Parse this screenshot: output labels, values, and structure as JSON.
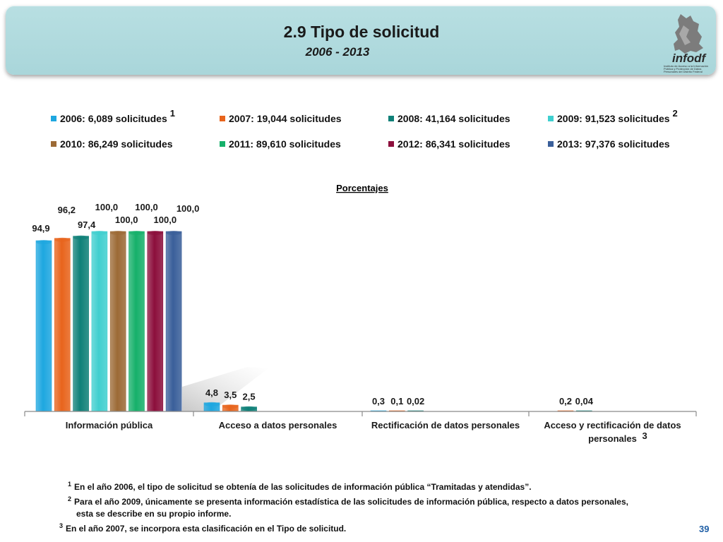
{
  "header": {
    "title": "2.9 Tipo de solicitud",
    "subtitle": "2006 - 2013",
    "logo_text": "infodf",
    "logo_caption": "Instituto de Acceso a la Información Pública y Protección de Datos Personales del Distrito Federal"
  },
  "legend": [
    {
      "label": "2006: 6,089 solicitudes",
      "sup": "1",
      "color": "#1ea7e0"
    },
    {
      "label": "2007: 19,044 solicitudes",
      "sup": "",
      "color": "#e8641c"
    },
    {
      "label": "2008: 41,164 solicitudes",
      "sup": "",
      "color": "#0f8078"
    },
    {
      "label": "2009: 91,523 solicitudes",
      "sup": "2",
      "color": "#3fcfcf"
    },
    {
      "label": "2010: 86,249 solicitudes",
      "sup": "",
      "color": "#9c6a36"
    },
    {
      "label": "2011: 89,610 solicitudes",
      "sup": "",
      "color": "#16b06a"
    },
    {
      "label": "2012: 86,341 solicitudes",
      "sup": "",
      "color": "#8c0f3c"
    },
    {
      "label": "2013: 97,376 solicitudes",
      "sup": "",
      "color": "#3a5f9a"
    }
  ],
  "chart_data": {
    "type": "bar",
    "title": "Porcentajes",
    "categories": [
      "Información pública",
      "Acceso a datos personales",
      "Rectificación de datos personales",
      "Acceso y rectificación de datos personales"
    ],
    "category_sup": [
      "",
      "",
      "",
      "3"
    ],
    "ylim": [
      0,
      100
    ],
    "grid": false,
    "series": [
      {
        "name": "2006: 6,089 solicitudes",
        "color": "#1ea7e0",
        "values": [
          94.9,
          4.8,
          0.3,
          null
        ],
        "labels": [
          "94,9",
          "4,8",
          "0,3",
          ""
        ]
      },
      {
        "name": "2007: 19,044 solicitudes",
        "color": "#e8641c",
        "values": [
          96.2,
          3.5,
          0.1,
          0.2
        ],
        "labels": [
          "96,2",
          "3,5",
          "0,1",
          "0,2"
        ]
      },
      {
        "name": "2008: 41,164 solicitudes",
        "color": "#0f8078",
        "values": [
          97.4,
          2.5,
          0.02,
          0.04
        ],
        "labels": [
          "97,4",
          "2,5",
          "0,02",
          "0,04"
        ]
      },
      {
        "name": "2009: 91,523 solicitudes",
        "color": "#3fcfcf",
        "values": [
          100.0,
          null,
          null,
          null
        ],
        "labels": [
          "100,0",
          "",
          "",
          ""
        ]
      },
      {
        "name": "2010: 86,249 solicitudes",
        "color": "#9c6a36",
        "values": [
          100.0,
          null,
          null,
          null
        ],
        "labels": [
          "100,0",
          "",
          "",
          ""
        ]
      },
      {
        "name": "2011: 89,610 solicitudes",
        "color": "#16b06a",
        "values": [
          100.0,
          null,
          null,
          null
        ],
        "labels": [
          "100,0",
          "",
          "",
          ""
        ]
      },
      {
        "name": "2012: 86,341 solicitudes",
        "color": "#8c0f3c",
        "values": [
          100.0,
          null,
          null,
          null
        ],
        "labels": [
          "100,0",
          "",
          "",
          ""
        ]
      },
      {
        "name": "2013: 97,376 solicitudes",
        "color": "#3a5f9a",
        "values": [
          100.0,
          null,
          null,
          null
        ],
        "labels": [
          "100,0",
          "",
          "",
          ""
        ]
      }
    ]
  },
  "footnotes": [
    {
      "num": "1",
      "text": "En el año 2006, el tipo de solicitud se obtenía  de las solicitudes de información pública “Tramitadas y atendidas”."
    },
    {
      "num": "2",
      "text": "Para el año 2009, únicamente se presenta información estadística de las solicitudes de información pública, respecto a datos personales,"
    },
    {
      "num": "",
      "text": "esta se describe en su propio informe."
    },
    {
      "num": "3",
      "text": "En el año 2007, se incorpora esta clasificación en el Tipo de solicitud."
    }
  ],
  "page_number": "39"
}
